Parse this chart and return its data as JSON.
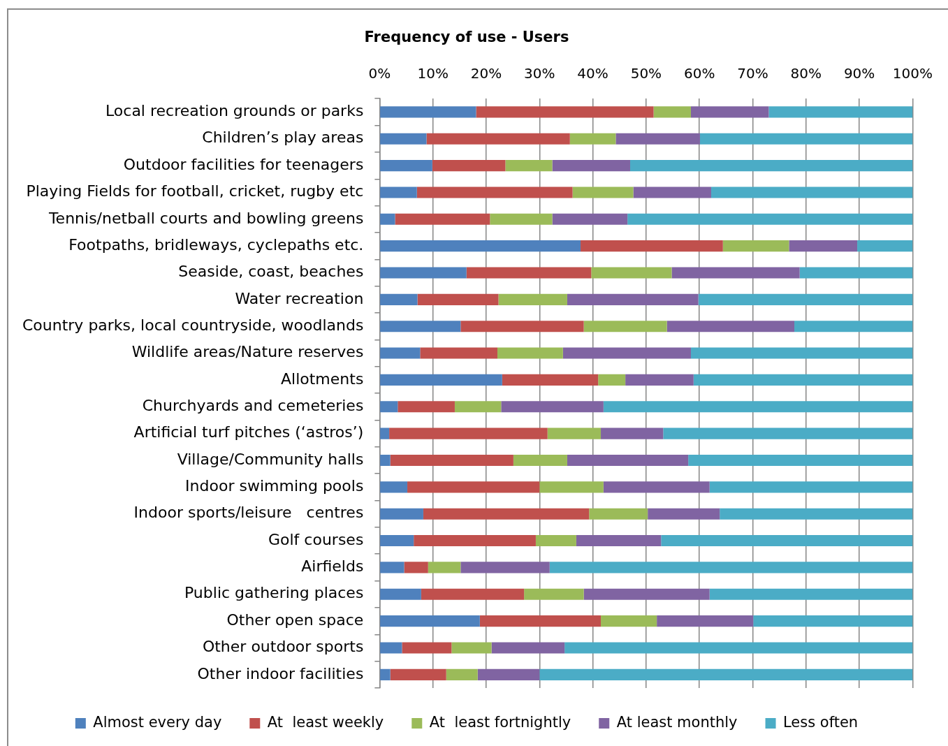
{
  "chart_data": {
    "type": "bar",
    "title": "Frequency of use - Users",
    "orientation": "horizontal",
    "stacked": true,
    "grid": "x",
    "legend": "bottom",
    "categories": [
      "Local recreation grounds or parks",
      "Children’s play areas",
      "Outdoor facilities for teenagers",
      "Playing Fields for football, cricket, rugby etc",
      "Tennis/netball courts and bowling greens",
      "Footpaths, bridleways, cyclepaths etc.",
      "Seaside, coast, beaches",
      "Water recreation",
      "Country parks, local countryside, woodlands",
      "Wildlife areas/Nature reserves",
      "Allotments",
      "Churchyards and cemeteries",
      "Artificial turf pitches (‘astros’)",
      "Village/Community halls",
      "Indoor swimming pools",
      "Indoor sports/leisure   centres",
      "Golf courses",
      "Airfields",
      "Public gathering places",
      "Other open space",
      "Other outdoor sports",
      "Other indoor facilities"
    ],
    "xlim": [
      0,
      100
    ],
    "xticks": [
      {
        "value": 0,
        "label": "0%"
      },
      {
        "value": 10,
        "label": "10%"
      },
      {
        "value": 20,
        "label": "20%"
      },
      {
        "value": 30,
        "label": "30%"
      },
      {
        "value": 40,
        "label": "40%"
      },
      {
        "value": 50,
        "label": "50%"
      },
      {
        "value": 60,
        "label": "60%"
      },
      {
        "value": 70,
        "label": "70%"
      },
      {
        "value": 80,
        "label": "80%"
      },
      {
        "value": 90,
        "label": "90%"
      },
      {
        "value": 100,
        "label": "100%"
      }
    ],
    "series": [
      {
        "name": "Almost every day",
        "color": "#4f81bd",
        "values": [
          18.1,
          8.8,
          9.9,
          7.0,
          2.9,
          37.7,
          16.3,
          7.1,
          15.2,
          7.6,
          23.0,
          3.4,
          1.8,
          2.0,
          5.2,
          8.2,
          6.4,
          4.6,
          7.8,
          18.8,
          4.2,
          2.0
        ]
      },
      {
        "name": "At  least weekly",
        "color": "#c0504d",
        "values": [
          33.3,
          26.9,
          13.7,
          29.2,
          17.8,
          26.7,
          23.4,
          15.2,
          23.1,
          14.5,
          18.0,
          10.7,
          29.7,
          23.1,
          24.8,
          31.1,
          22.9,
          4.5,
          19.3,
          22.7,
          9.3,
          10.5
        ]
      },
      {
        "name": "At  least fortnightly",
        "color": "#9bbb59",
        "values": [
          7.0,
          8.6,
          8.8,
          11.4,
          11.7,
          12.4,
          15.1,
          12.9,
          15.6,
          12.3,
          5.1,
          8.7,
          10.0,
          10.1,
          12.0,
          11.0,
          7.6,
          6.1,
          11.2,
          10.5,
          7.5,
          5.9
        ]
      },
      {
        "name": "At least monthly",
        "color": "#8064a2",
        "values": [
          14.6,
          15.8,
          14.6,
          14.6,
          14.1,
          12.8,
          24.0,
          24.6,
          23.9,
          24.0,
          12.8,
          19.2,
          11.7,
          22.7,
          19.9,
          13.5,
          15.9,
          16.7,
          23.6,
          18.1,
          13.7,
          11.6
        ]
      },
      {
        "name": "Less often",
        "color": "#4bacc6",
        "values": [
          27.0,
          39.9,
          53.0,
          37.8,
          53.5,
          10.4,
          21.2,
          40.2,
          22.2,
          41.6,
          41.1,
          58.0,
          46.8,
          42.1,
          38.1,
          36.2,
          47.2,
          68.1,
          38.1,
          29.9,
          65.3,
          70.0
        ]
      }
    ]
  }
}
